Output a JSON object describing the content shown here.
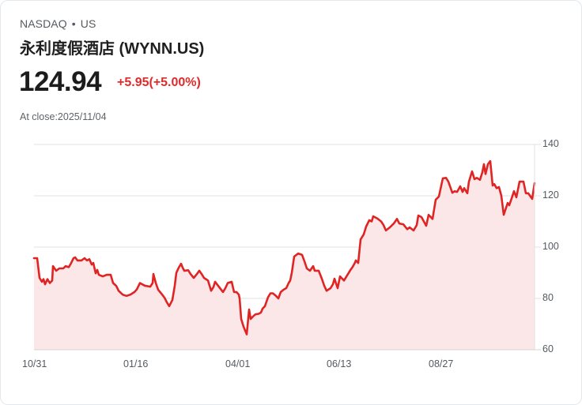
{
  "header": {
    "exchange": "NASDAQ",
    "separator": "•",
    "market": "US",
    "title": "永利度假酒店 (WYNN.US)",
    "price": "124.94",
    "change": "+5.95(+5.00%)",
    "close_time": "At close:2025/11/04"
  },
  "colors": {
    "line": "#e02424",
    "fill": "#fbe7e7",
    "grid": "#e2e2e2",
    "change_positive": "#de2b2b"
  },
  "chart_data": {
    "type": "area",
    "title": "永利度假酒店 (WYNN.US)",
    "xlabel": "",
    "ylabel": "",
    "ylim": [
      60,
      140
    ],
    "yticks": [
      140,
      120,
      100,
      80,
      60
    ],
    "y_axis_position": "right",
    "grid": true,
    "legend": "none",
    "x_tick_labels": [
      "10/31",
      "01/16",
      "04/01",
      "06/13",
      "08/27"
    ],
    "x_tick_positions": [
      0,
      128,
      257,
      385,
      514
    ],
    "x_range": [
      0,
      633
    ],
    "points": [
      [
        0,
        95.7
      ],
      [
        4,
        95.7
      ],
      [
        7,
        88
      ],
      [
        10,
        86.5
      ],
      [
        12,
        87.5
      ],
      [
        14,
        85.5
      ],
      [
        17,
        87.5
      ],
      [
        20,
        86
      ],
      [
        23,
        87
      ],
      [
        24,
        92.6
      ],
      [
        28,
        90.8
      ],
      [
        32,
        91.7
      ],
      [
        37,
        91.7
      ],
      [
        40,
        92.6
      ],
      [
        44,
        92.2
      ],
      [
        47,
        93.8
      ],
      [
        50,
        95.7
      ],
      [
        52,
        96
      ],
      [
        55,
        94.8
      ],
      [
        60,
        94.8
      ],
      [
        64,
        95.7
      ],
      [
        67,
        94.8
      ],
      [
        70,
        95.3
      ],
      [
        73,
        93.2
      ],
      [
        75,
        93.8
      ],
      [
        78,
        89.8
      ],
      [
        80,
        91.1
      ],
      [
        82,
        89.2
      ],
      [
        87,
        88.6
      ],
      [
        92,
        89.2
      ],
      [
        97,
        89.2
      ],
      [
        100,
        86
      ],
      [
        104,
        84.9
      ],
      [
        107,
        83
      ],
      [
        112,
        81.5
      ],
      [
        117,
        81
      ],
      [
        122,
        81.5
      ],
      [
        127,
        82.5
      ],
      [
        130,
        83.5
      ],
      [
        134,
        86
      ],
      [
        140,
        85
      ],
      [
        147,
        84.6
      ],
      [
        150,
        86
      ],
      [
        151,
        89.5
      ],
      [
        154,
        86
      ],
      [
        157,
        83.4
      ],
      [
        162,
        81.5
      ],
      [
        165,
        80.3
      ],
      [
        168,
        78.5
      ],
      [
        171,
        77
      ],
      [
        175,
        79.4
      ],
      [
        178,
        85
      ],
      [
        180,
        90
      ],
      [
        183,
        92
      ],
      [
        186,
        93.5
      ],
      [
        188,
        92
      ],
      [
        190,
        90.8
      ],
      [
        195,
        91
      ],
      [
        198,
        89.5
      ],
      [
        202,
        88
      ],
      [
        206,
        89.5
      ],
      [
        209,
        90.8
      ],
      [
        212,
        89.5
      ],
      [
        215,
        88
      ],
      [
        220,
        87
      ],
      [
        224,
        83
      ],
      [
        227,
        84.5
      ],
      [
        229,
        86.5
      ],
      [
        234,
        84.5
      ],
      [
        239,
        82.5
      ],
      [
        242,
        84
      ],
      [
        245,
        86
      ],
      [
        250,
        86.5
      ],
      [
        253,
        82.5
      ],
      [
        256,
        82.5
      ],
      [
        259,
        81.5
      ],
      [
        260,
        80
      ],
      [
        262,
        72
      ],
      [
        265,
        69
      ],
      [
        269,
        66
      ],
      [
        272,
        75.7
      ],
      [
        274,
        72
      ],
      [
        277,
        73
      ],
      [
        280,
        73.8
      ],
      [
        284,
        74
      ],
      [
        287,
        74.5
      ],
      [
        289,
        76
      ],
      [
        292,
        77
      ],
      [
        296,
        80.5
      ],
      [
        299,
        82
      ],
      [
        302,
        82
      ],
      [
        306,
        81
      ],
      [
        309,
        80
      ],
      [
        312,
        82.5
      ],
      [
        316,
        83.5
      ],
      [
        319,
        84
      ],
      [
        322,
        86
      ],
      [
        324,
        87
      ],
      [
        326,
        90
      ],
      [
        329,
        96.3
      ],
      [
        334,
        97.5
      ],
      [
        339,
        97
      ],
      [
        342,
        94.5
      ],
      [
        345,
        91.7
      ],
      [
        349,
        90.8
      ],
      [
        353,
        92.6
      ],
      [
        355,
        90.8
      ],
      [
        360,
        90.8
      ],
      [
        364,
        87.7
      ],
      [
        367,
        85
      ],
      [
        370,
        83
      ],
      [
        375,
        84
      ],
      [
        378,
        85.5
      ],
      [
        380,
        87.7
      ],
      [
        384,
        84
      ],
      [
        387,
        88.6
      ],
      [
        392,
        87
      ],
      [
        396,
        89
      ],
      [
        400,
        91
      ],
      [
        403,
        92.3
      ],
      [
        406,
        94
      ],
      [
        407,
        94.8
      ],
      [
        410,
        93.8
      ],
      [
        413,
        103
      ],
      [
        417,
        105
      ],
      [
        420,
        108
      ],
      [
        424,
        110.5
      ],
      [
        427,
        110
      ],
      [
        429,
        112
      ],
      [
        434,
        111.2
      ],
      [
        439,
        110
      ],
      [
        442,
        108.6
      ],
      [
        445,
        106.5
      ],
      [
        450,
        107.7
      ],
      [
        455,
        109.2
      ],
      [
        459,
        111
      ],
      [
        462,
        109.2
      ],
      [
        467,
        108.9
      ],
      [
        472,
        107
      ],
      [
        475,
        107.7
      ],
      [
        480,
        106.5
      ],
      [
        484,
        108.6
      ],
      [
        486,
        112.3
      ],
      [
        490,
        111.7
      ],
      [
        496,
        108.3
      ],
      [
        499,
        112.6
      ],
      [
        504,
        111
      ],
      [
        508,
        118.5
      ],
      [
        512,
        119.7
      ],
      [
        517,
        126.8
      ],
      [
        521,
        127
      ],
      [
        524,
        125.5
      ],
      [
        529,
        121.2
      ],
      [
        532,
        121.8
      ],
      [
        535,
        121.5
      ],
      [
        539,
        123.7
      ],
      [
        542,
        121.5
      ],
      [
        544,
        123
      ],
      [
        548,
        121
      ],
      [
        550,
        125.5
      ],
      [
        554,
        129.5
      ],
      [
        557,
        126.5
      ],
      [
        560,
        127
      ],
      [
        564,
        126.2
      ],
      [
        567,
        129.2
      ],
      [
        569,
        132.3
      ],
      [
        571,
        128.5
      ],
      [
        574,
        132.3
      ],
      [
        577,
        133.5
      ],
      [
        580,
        124
      ],
      [
        582,
        124.6
      ],
      [
        585,
        123
      ],
      [
        588,
        123.4
      ],
      [
        591,
        120
      ],
      [
        594,
        112.6
      ],
      [
        599,
        117.2
      ],
      [
        601,
        116.3
      ],
      [
        604,
        119
      ],
      [
        607,
        121.8
      ],
      [
        610,
        119.4
      ],
      [
        614,
        125.5
      ],
      [
        619,
        125.5
      ],
      [
        622,
        121
      ],
      [
        625,
        121
      ],
      [
        630,
        118.8
      ],
      [
        633,
        124.94
      ]
    ]
  }
}
